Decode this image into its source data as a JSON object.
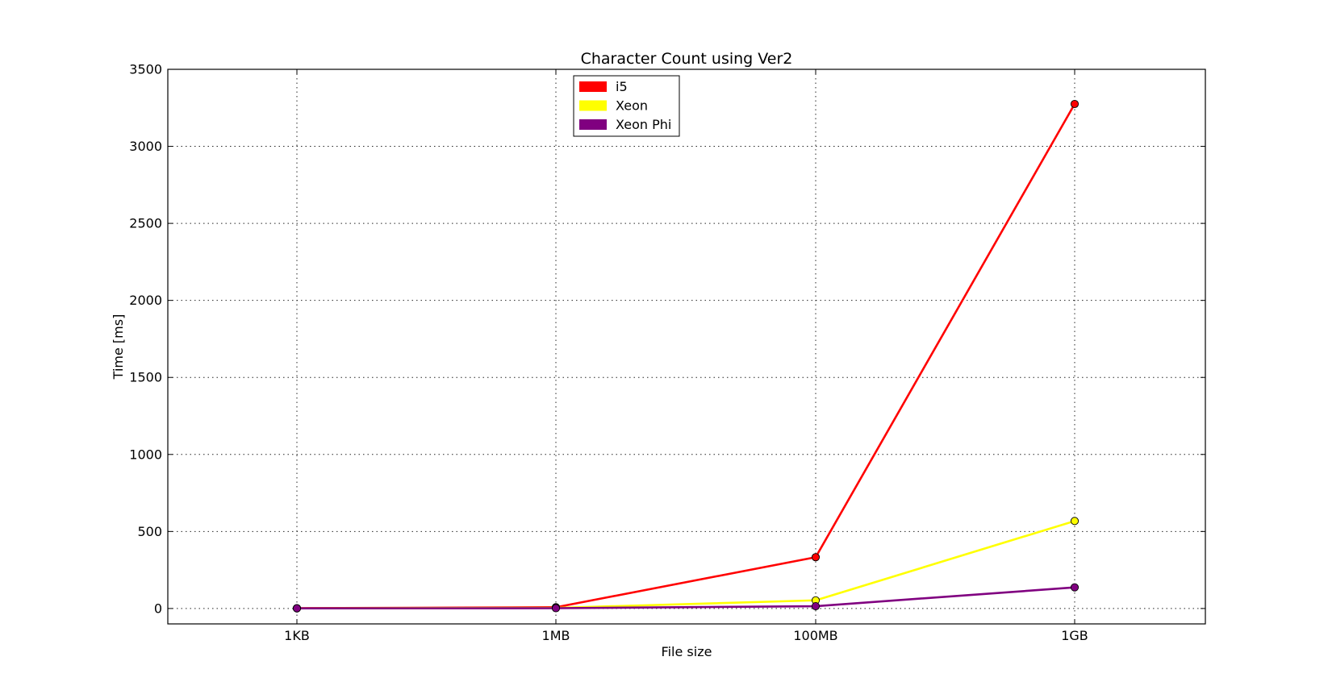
{
  "chart_data": {
    "type": "line",
    "title": "Character Count using Ver2",
    "xlabel": "File size",
    "ylabel": "Time [ms]",
    "categories": [
      "1KB",
      "1MB",
      "100MB",
      "1GB"
    ],
    "ylim": [
      -100,
      3500
    ],
    "yticks": [
      0,
      500,
      1000,
      1500,
      2000,
      2500,
      3000,
      3500
    ],
    "grid": true,
    "legend_position": "top-center",
    "series": [
      {
        "name": "i5",
        "color": "#ff0000",
        "values": [
          2,
          8,
          333,
          3275
        ]
      },
      {
        "name": "Xeon",
        "color": "#ffff00",
        "values": [
          1,
          4,
          53,
          568
        ]
      },
      {
        "name": "Xeon Phi",
        "color": "#800080",
        "values": [
          1,
          2,
          15,
          137
        ]
      }
    ]
  }
}
